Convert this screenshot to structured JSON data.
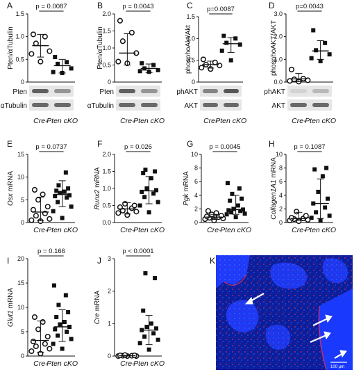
{
  "figure": {
    "micrograph": {
      "letter": "K",
      "scale_label": "100 µm",
      "colors": {
        "background": "#0a1f9e",
        "tissue": "#1e3cff",
        "stain": "#c0306a",
        "arrow": "#ffffff"
      }
    }
  },
  "chart_data": [
    {
      "id": "A",
      "letter": "A",
      "type": "scatter",
      "ylabel": "Pten/αTubulin",
      "ylabel_italic_prefix": "",
      "ylim": [
        0,
        1.5
      ],
      "yticks": [
        0,
        0.5,
        1.0,
        1.5
      ],
      "ytick_labels": [
        "0",
        "0.5",
        "1.0",
        "1.5"
      ],
      "categories": [
        "Cre-",
        "Pten cKO"
      ],
      "pvalue": "p = 0.0087",
      "series": [
        {
          "name": "Cre-",
          "marker": "circle",
          "values": [
            0.45,
            0.62,
            0.68,
            0.85,
            1.0,
            1.05
          ],
          "mean": 0.8,
          "sd_low": 0.55,
          "sd_high": 1.05
        },
        {
          "name": "Pten cKO",
          "marker": "square",
          "values": [
            0.2,
            0.22,
            0.3,
            0.4,
            0.44,
            0.55
          ],
          "mean": 0.36,
          "sd_low": 0.2,
          "sd_high": 0.5
        }
      ],
      "blot_labels": [
        "Pten",
        "αTubulin"
      ]
    },
    {
      "id": "B",
      "letter": "B",
      "type": "scatter",
      "ylabel": "Pten/αTubulin",
      "ylabel_italic_prefix": "",
      "ylim": [
        0,
        2.0
      ],
      "yticks": [
        0,
        0.5,
        1.0,
        1.5,
        2.0
      ],
      "ytick_labels": [
        "0",
        "0.5",
        "1.0",
        "1.5",
        "2.0"
      ],
      "categories": [
        "Cre-",
        "Pten cKO"
      ],
      "pvalue": "p = 0.0043",
      "series": [
        {
          "name": "Cre-",
          "marker": "circle",
          "values": [
            0.55,
            0.6,
            0.85,
            1.2,
            1.45,
            1.8
          ],
          "mean": 0.85,
          "sd_low": 0.5,
          "sd_high": 1.42
        },
        {
          "name": "Pten cKO",
          "marker": "square",
          "values": [
            0.3,
            0.32,
            0.35,
            0.4,
            0.5,
            0.55
          ],
          "mean": 0.4,
          "sd_low": 0.28,
          "sd_high": 0.53
        }
      ],
      "blot_labels": [
        "Pten",
        "αTubulin"
      ]
    },
    {
      "id": "C",
      "letter": "C",
      "type": "scatter",
      "ylabel": "phosphoAkt/Akt",
      "ylabel_italic_prefix": "",
      "ylim": [
        0,
        1.5
      ],
      "yticks": [
        0,
        0.5,
        1.0,
        1.5
      ],
      "ytick_labels": [
        "0",
        "0.5",
        "1.0",
        "1.5"
      ],
      "categories": [
        "Cre-",
        "Pten cKO"
      ],
      "pvalue": "p=0.0087",
      "series": [
        {
          "name": "Cre-",
          "marker": "circle",
          "values": [
            0.3,
            0.33,
            0.38,
            0.4,
            0.45,
            0.52
          ],
          "mean": 0.4,
          "sd_low": 0.32,
          "sd_high": 0.48
        },
        {
          "name": "Pten cKO",
          "marker": "square",
          "values": [
            0.5,
            0.72,
            0.86,
            0.9,
            1.0,
            1.06
          ],
          "mean": 0.88,
          "sd_low": 0.68,
          "sd_high": 1.02
        }
      ],
      "blot_labels": [
        "phAKT",
        "AKT"
      ]
    },
    {
      "id": "D",
      "letter": "D",
      "type": "scatter",
      "ylabel": "phosphoAKT/AKT",
      "ylabel_italic_prefix": "",
      "ylim": [
        0,
        3.0
      ],
      "yticks": [
        0,
        1.0,
        2.0,
        3.0
      ],
      "ytick_labels": [
        "0.0",
        "1.0",
        "2.0",
        "3.0"
      ],
      "categories": [
        "Cre-",
        "Pten cKO"
      ],
      "pvalue": "p=0.0043",
      "series": [
        {
          "name": "Cre-",
          "marker": "circle",
          "values": [
            0.02,
            0.05,
            0.08,
            0.12,
            0.15,
            0.55
          ],
          "mean": 0.14,
          "sd_low": 0.02,
          "sd_high": 0.38
        },
        {
          "name": "Pten cKO",
          "marker": "square",
          "values": [
            0.92,
            1.05,
            1.22,
            1.4,
            1.72,
            2.28
          ],
          "mean": 1.37,
          "sd_low": 1.0,
          "sd_high": 1.82
        }
      ],
      "blot_labels": [
        "phAKT",
        "AKT"
      ]
    },
    {
      "id": "E",
      "letter": "E",
      "type": "scatter",
      "ylabel": "mRNA",
      "ylabel_italic_prefix": "Osx",
      "ylim": [
        0,
        15
      ],
      "yticks": [
        0,
        5,
        10,
        15
      ],
      "ytick_labels": [
        "0",
        "5",
        "10",
        "15"
      ],
      "categories": [
        "Cre-",
        "Pten cKO"
      ],
      "pvalue": "p = 0.0737",
      "series": [
        {
          "name": "Cre-",
          "marker": "circle",
          "values": [
            0.3,
            0.5,
            0.8,
            1.5,
            2.0,
            2.8,
            3.5,
            5.0,
            6.2,
            7.2
          ],
          "mean": 2.3,
          "sd_low": 0.4,
          "sd_high": 5.6
        },
        {
          "name": "Pten cKO",
          "marker": "square",
          "values": [
            1.0,
            2.5,
            3.5,
            4.5,
            5.5,
            5.8,
            6.0,
            6.5,
            6.8,
            7.0,
            7.5,
            8.2,
            11.0
          ],
          "mean": 6.2,
          "sd_low": 3.5,
          "sd_high": 9.2
        }
      ]
    },
    {
      "id": "F",
      "letter": "F",
      "type": "scatter",
      "ylabel": "mRNA",
      "ylabel_italic_prefix": "Runx2",
      "ylim": [
        0,
        2.0
      ],
      "yticks": [
        0,
        0.5,
        1.0,
        1.5,
        2.0
      ],
      "ytick_labels": [
        "0.0",
        "0.5",
        "1.0",
        "1.5",
        "2.0"
      ],
      "categories": [
        "Cre-",
        "Pten cKO"
      ],
      "pvalue": "p = 0.026",
      "series": [
        {
          "name": "Cre-",
          "marker": "circle",
          "values": [
            0.22,
            0.28,
            0.32,
            0.35,
            0.42,
            0.45,
            0.5,
            0.55
          ],
          "mean": 0.4,
          "sd_low": 0.25,
          "sd_high": 0.58
        },
        {
          "name": "Pten cKO",
          "marker": "square",
          "values": [
            0.3,
            0.5,
            0.6,
            0.75,
            0.85,
            0.9,
            0.95,
            1.0,
            1.3,
            1.45,
            1.5,
            1.55
          ],
          "mean": 0.93,
          "sd_low": 0.55,
          "sd_high": 1.35
        }
      ]
    },
    {
      "id": "G",
      "letter": "G",
      "type": "scatter",
      "ylabel": "mRNA",
      "ylabel_italic_prefix": "Pgk",
      "ylim": [
        0,
        10
      ],
      "yticks": [
        0,
        2,
        4,
        6,
        8,
        10
      ],
      "ytick_labels": [
        "0",
        "2",
        "4",
        "6",
        "8",
        "10"
      ],
      "categories": [
        "Cre-",
        "Pten cKO"
      ],
      "pvalue": "p = 0.0045",
      "series": [
        {
          "name": "Cre-",
          "marker": "circle",
          "values": [
            0.3,
            0.5,
            0.6,
            0.7,
            0.8,
            0.9,
            1.0,
            1.2,
            1.4,
            1.7
          ],
          "mean": 0.8,
          "sd_low": 0.45,
          "sd_high": 1.2
        },
        {
          "name": "Pten cKO",
          "marker": "square",
          "values": [
            0.8,
            1.2,
            1.3,
            1.5,
            1.7,
            1.8,
            1.9,
            2.0,
            2.5,
            3.2,
            3.5,
            4.2,
            5.0,
            5.8
          ],
          "mean": 1.9,
          "sd_low": 1.2,
          "sd_high": 4.0
        }
      ]
    },
    {
      "id": "H",
      "letter": "H",
      "type": "scatter",
      "ylabel": "mRNA",
      "ylabel_italic_prefix": "Collagen1A1",
      "ylim": [
        0,
        10
      ],
      "yticks": [
        0,
        2,
        4,
        6,
        8,
        10
      ],
      "ytick_labels": [
        "0",
        "2",
        "4",
        "6",
        "8",
        "10"
      ],
      "categories": [
        "Cre-",
        "Pten cKO"
      ],
      "pvalue": "p = 0.1087",
      "series": [
        {
          "name": "Cre-",
          "marker": "circle",
          "values": [
            0.2,
            0.3,
            0.4,
            0.5,
            0.6,
            0.7,
            1.0,
            1.6
          ],
          "mean": 0.6,
          "sd_low": 0.3,
          "sd_high": 1.5
        },
        {
          "name": "Pten cKO",
          "marker": "square",
          "values": [
            0.3,
            0.7,
            1.0,
            1.5,
            2.2,
            2.8,
            3.5,
            4.5,
            6.8,
            7.8,
            8.0
          ],
          "mean": 2.8,
          "sd_low": 0.6,
          "sd_high": 6.4
        }
      ]
    },
    {
      "id": "I",
      "letter": "I",
      "type": "scatter",
      "ylabel": "mRNA",
      "ylabel_italic_prefix": "Glut1",
      "ylim": [
        0,
        20
      ],
      "yticks": [
        0,
        5,
        10,
        15,
        20
      ],
      "ytick_labels": [
        "0",
        "5",
        "10",
        "15",
        "20"
      ],
      "categories": [
        "Cre-",
        "Pten cKO"
      ],
      "pvalue": "p = 0.166",
      "series": [
        {
          "name": "Cre-",
          "marker": "circle",
          "values": [
            0.5,
            1.0,
            1.5,
            2.0,
            2.5,
            3.0,
            4.0,
            5.5,
            7.0,
            8.0
          ],
          "mean": 3.2,
          "sd_low": 0.8,
          "sd_high": 7.2
        },
        {
          "name": "Pten cKO",
          "marker": "square",
          "values": [
            1.5,
            2.5,
            3.5,
            4.2,
            5.0,
            5.5,
            6.0,
            6.5,
            7.0,
            8.0,
            9.0,
            10.5,
            12.5,
            14.5
          ],
          "mean": 6.0,
          "sd_low": 3.0,
          "sd_high": 9.5
        }
      ]
    },
    {
      "id": "J",
      "letter": "J",
      "type": "scatter",
      "ylabel": "mRNA",
      "ylabel_italic_prefix": "Cre",
      "ylim": [
        0,
        3
      ],
      "yticks": [
        0,
        1,
        2,
        3
      ],
      "ytick_labels": [
        "0",
        "1",
        "2",
        "3"
      ],
      "categories": [
        "Cre-",
        "Pten cKO"
      ],
      "pvalue": "p < 0.0001",
      "series": [
        {
          "name": "Cre-",
          "marker": "circle",
          "values": [
            0.0,
            0.0,
            0.0,
            0.01,
            0.01,
            0.02,
            0.02,
            0.03
          ],
          "mean": 0.01,
          "sd_low": 0.0,
          "sd_high": 0.02
        },
        {
          "name": "Pten cKO",
          "marker": "square",
          "values": [
            0.2,
            0.4,
            0.5,
            0.6,
            0.7,
            0.8,
            0.85,
            0.9,
            1.0,
            1.4,
            2.4,
            2.55
          ],
          "mean": 0.8,
          "sd_low": 0.35,
          "sd_high": 1.25
        }
      ]
    }
  ]
}
